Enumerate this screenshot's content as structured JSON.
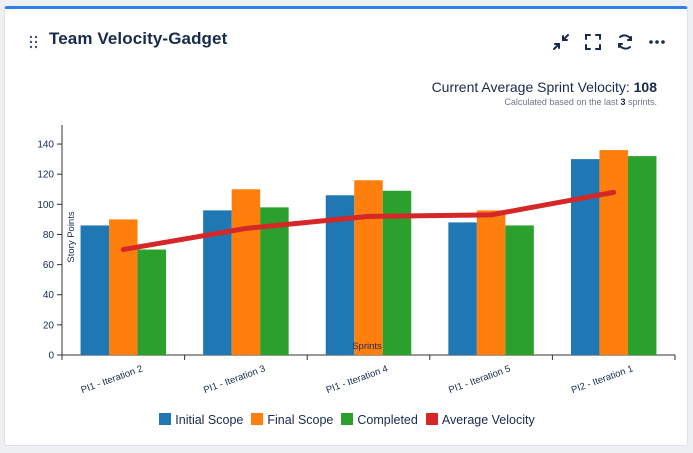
{
  "gadget": {
    "title": "Team Velocity-Gadget",
    "summary_prefix": "Current Average Sprint Velocity: ",
    "summary_value": "108",
    "note_prefix": "Calculated based on the last ",
    "note_count": "3",
    "note_suffix": " sprints."
  },
  "header_icons": [
    "drag-handle-icon",
    "minimize-icon",
    "fullscreen-icon",
    "refresh-icon",
    "more-icon"
  ],
  "colors": {
    "initial": "#1f77b4",
    "final": "#ff7f0e",
    "completed": "#2ca02c",
    "average": "#d62728",
    "accent": "#2f80ed"
  },
  "chart_data": {
    "type": "bar",
    "xlabel": "Sprints",
    "ylabel": "Story Points",
    "ylim": [
      0,
      150
    ],
    "yticks": [
      0,
      20,
      40,
      60,
      80,
      100,
      120,
      140
    ],
    "categories": [
      "PI1 - Iteration 2",
      "PI1 - Iteration 3",
      "PI1 - Iteration 4",
      "PI1 - Iteration 5",
      "PI2 - Iteration 1"
    ],
    "series": [
      {
        "name": "Initial Scope",
        "values": [
          86,
          96,
          106,
          88,
          130
        ]
      },
      {
        "name": "Final Scope",
        "values": [
          90,
          110,
          116,
          96,
          136
        ]
      },
      {
        "name": "Completed",
        "values": [
          70,
          98,
          109,
          86,
          132
        ]
      }
    ],
    "line_series": {
      "name": "Average Velocity",
      "values": [
        70,
        84,
        92,
        93,
        108
      ]
    },
    "legend_position": "bottom"
  }
}
